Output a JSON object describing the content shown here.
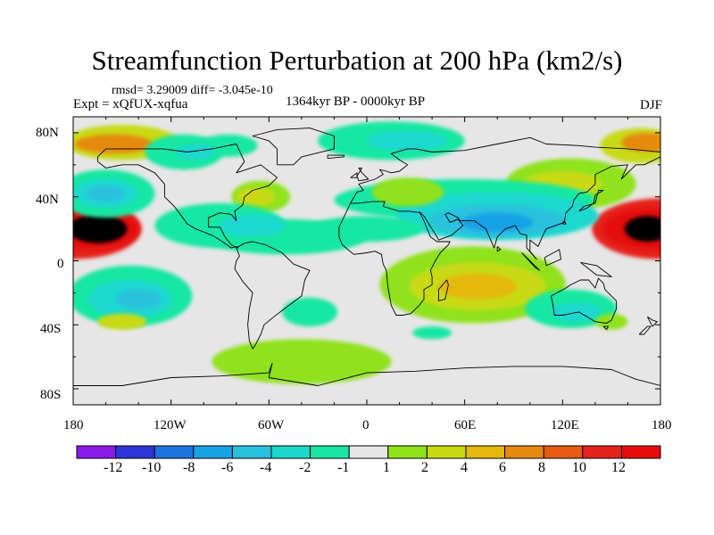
{
  "title": "Streamfunction Perturbation at 200 hPa (km2/s)",
  "stats": "rmsd= 3.29009 diff= -3.045e-10",
  "experiment": "Expt = xQfUX-xqfua",
  "period": "1364kyr BP - 0000kyr BP",
  "season": "DJF",
  "lat_labels": [
    "80N",
    "40N",
    "0",
    "40S",
    "80S"
  ],
  "lon_labels": [
    "180",
    "120W",
    "60W",
    "0",
    "60E",
    "120E",
    "180"
  ],
  "colorbar": {
    "labels": [
      "-12",
      "-10",
      "-8",
      "-6",
      "-4",
      "-2",
      "-1",
      "1",
      "2",
      "4",
      "6",
      "8",
      "10",
      "12"
    ],
    "colors": [
      "#8b1aeb",
      "#2f35d6",
      "#1c74e3",
      "#18a2e6",
      "#29c1de",
      "#1bd8cf",
      "#18e7a3",
      "#e6e6e6",
      "#8fe21a",
      "#c8da12",
      "#e5b80f",
      "#e68a0f",
      "#e65a12",
      "#e6221c",
      "#e50d0d"
    ]
  },
  "field_blobs": [
    {
      "lon": -180,
      "lat": 20,
      "rx": 42,
      "ry": 19,
      "level": 6
    },
    {
      "lon": -170,
      "lat": 20,
      "rx": 30,
      "ry": 13,
      "level": 7
    },
    {
      "lon": -165,
      "lat": 20,
      "rx": 18,
      "ry": 9,
      "level": 8
    },
    {
      "lon": 180,
      "lat": 20,
      "rx": 42,
      "ry": 19,
      "level": 6
    },
    {
      "lon": 175,
      "lat": 20,
      "rx": 30,
      "ry": 13,
      "level": 7
    },
    {
      "lon": 172,
      "lat": 20,
      "rx": 14,
      "ry": 8,
      "level": 8
    },
    {
      "lon": -150,
      "lat": 74,
      "rx": 35,
      "ry": 11,
      "level": 2
    },
    {
      "lon": -155,
      "lat": 73,
      "rx": 24,
      "ry": 6,
      "level": 4
    },
    {
      "lon": 168,
      "lat": 72,
      "rx": 25,
      "ry": 11,
      "level": 2
    },
    {
      "lon": 172,
      "lat": 74,
      "rx": 16,
      "ry": 6,
      "level": 4
    },
    {
      "lon": 125,
      "lat": 48,
      "rx": 40,
      "ry": 16,
      "level": 1
    },
    {
      "lon": 120,
      "lat": 48,
      "rx": 24,
      "ry": 8,
      "level": 2
    },
    {
      "lon": -112,
      "lat": 68,
      "rx": 24,
      "ry": 11,
      "level": -1
    },
    {
      "lon": -85,
      "lat": 72,
      "rx": 18,
      "ry": 7,
      "level": -1
    },
    {
      "lon": -105,
      "lat": 68,
      "rx": 12,
      "ry": 5,
      "level": -2
    },
    {
      "lon": -65,
      "lat": 40,
      "rx": 18,
      "ry": 10,
      "level": 1
    },
    {
      "lon": -68,
      "lat": 40,
      "rx": 12,
      "ry": 6,
      "level": 2
    },
    {
      "lon": -90,
      "lat": 22,
      "rx": 40,
      "ry": 14,
      "level": -1
    },
    {
      "lon": -50,
      "lat": 15,
      "rx": 50,
      "ry": 11,
      "level": -1
    },
    {
      "lon": -70,
      "lat": 22,
      "rx": 20,
      "ry": 7,
      "level": -2
    },
    {
      "lon": -160,
      "lat": 42,
      "rx": 30,
      "ry": 15,
      "level": -1
    },
    {
      "lon": -160,
      "lat": 42,
      "rx": 20,
      "ry": 9,
      "level": -2
    },
    {
      "lon": -160,
      "lat": 42,
      "rx": 12,
      "ry": 5,
      "level": -3
    },
    {
      "lon": -145,
      "lat": -22,
      "rx": 38,
      "ry": 19,
      "level": -1
    },
    {
      "lon": -145,
      "lat": -24,
      "rx": 26,
      "ry": 12,
      "level": -2
    },
    {
      "lon": -140,
      "lat": -24,
      "rx": 14,
      "ry": 6,
      "level": -3
    },
    {
      "lon": -150,
      "lat": -38,
      "rx": 15,
      "ry": 5,
      "level": 2
    },
    {
      "lon": -35,
      "lat": -32,
      "rx": 17,
      "ry": 9,
      "level": -1
    },
    {
      "lon": 60,
      "lat": 38,
      "rx": 80,
      "ry": 13,
      "level": -1
    },
    {
      "lon": 80,
      "lat": 28,
      "rx": 62,
      "ry": 15,
      "level": -2
    },
    {
      "lon": 80,
      "lat": 25,
      "rx": 42,
      "ry": 10,
      "level": -3
    },
    {
      "lon": 80,
      "lat": 24,
      "rx": 22,
      "ry": 6,
      "level": -4
    },
    {
      "lon": 0,
      "lat": 20,
      "rx": 35,
      "ry": 8,
      "level": -1
    },
    {
      "lon": 15,
      "lat": 75,
      "rx": 45,
      "ry": 12,
      "level": -1
    },
    {
      "lon": 25,
      "lat": 75,
      "rx": 25,
      "ry": 6,
      "level": -2
    },
    {
      "lon": 25,
      "lat": 43,
      "rx": 22,
      "ry": 9,
      "level": 1
    },
    {
      "lon": 65,
      "lat": -15,
      "rx": 57,
      "ry": 24,
      "level": 1
    },
    {
      "lon": 68,
      "lat": -16,
      "rx": 42,
      "ry": 15,
      "level": 2
    },
    {
      "lon": 68,
      "lat": -16,
      "rx": 24,
      "ry": 8,
      "level": 3
    },
    {
      "lon": 125,
      "lat": -30,
      "rx": 28,
      "ry": 12,
      "level": -1
    },
    {
      "lon": 128,
      "lat": -32,
      "rx": 15,
      "ry": 6,
      "level": -2
    },
    {
      "lon": -40,
      "lat": -63,
      "rx": 55,
      "ry": 14,
      "level": 1
    },
    {
      "lon": 150,
      "lat": -38,
      "rx": 10,
      "ry": 5,
      "level": 1
    },
    {
      "lon": 40,
      "lat": -45,
      "rx": 12,
      "ry": 4,
      "level": -1
    }
  ],
  "coastlines": [
    "-165,65 -160,70 -140,70 -125,70 -110,68 -95,70 -80,73 -75,62 -80,55 -65,60 -55,52 -60,47 -70,44 -75,40 -76,35 -81,31 -80,25 -83,29 -90,30 -97,27 -97,21 -90,21 -87,15 -83,10 -79,8 -80,9 -83,8 -90,13 -95,16 -105,20 -110,23 -115,30 -118,34 -124,40 -124,48 -130,55 -140,60 -150,60 -160,58 -165,62 -165,65",
    "-80,8 -75,11 -70,12 -62,10 -52,5 -45,-2 -35,-6 -38,-12 -40,-22 -48,-28 -57,-35 -63,-40 -65,-46 -68,-52 -70,-55 -72,-50 -73,-40 -72,-30 -70,-20 -76,-13 -81,-5 -80,0 -78,3 -80,8",
    "-55,60 -45,60 -40,65 -20,70 -20,78 -35,83 -55,82 -70,78 -60,75 -55,70 -55,60",
    "-10,36 -6,43 -2,44 -5,48 5,51 10,54 8,57 12,56 15,55 20,56 25,60 20,63 15,67 25,70 30,70 40,68 60,69 80,73 100,77 110,73 130,72 140,71 160,70 170,69 180,68",
    "180,65 170,60 165,60 160,55 156,51 160,60 150,59 140,54 140,48 135,43 130,42 127,38 126,34 122,30 121,24 110,20 108,16 105,9 100,13 100,6 104,1 98,8 98,16 94,17 91,22 88,21 85,20 80,15 78,8 73,20 70,22 66,25 57,25 56,27 50,30 48,29 51,24 56,26 59,22 52,16 44,13 43,15 35,28 33,30 26,31 20,31 10,34 11,37 3,37 -5,36 -10,36",
    "-10,36 -17,21 -17,15 -15,10 -8,4 0,5 5,6 9,4 10,-2 12,-6 13,-17 15,-28 18,-34 22,-34 27,-33 32,-28 35,-24 35,-18 40,-15 40,-10 39,-6 42,0 45,5 50,10 51,12 43,12 39,15 35,25 32,31",
    "113,-22 114,-27 115,-34 120,-34 130,-32 135,-35 140,-38 147,-39 150,-37 153,-30 153,-25 146,-18 145,-14 142,-11 140,-17 136,-12 131,-12 125,-15 122,-17 113,-22",
    "-180,-78 -150,-78 -120,-73 -90,-72 -60,-70 -58,-64 -60,-73 -30,-78 0,-70 30,-69 60,-67 90,-66 120,-66 150,-68 165,-74 180,-78",
    "-5,50 1,51 -3,55 -5,58 -3,58 -6,53 -5,50",
    "-10,52 -6,55 -6,52 -10,52",
    "-24,64 -14,65 -14,66 -24,66 -24,64",
    "130,31 133,34 140,36 141,40 142,44 145,44 140,41 139,36 135,33 130,31",
    "44,-25 48,-24 50,-15 49,-12 44,-18 44,-25",
    "95,5 106,-6 103,-4 95,5",
    "109,2 118,7 119,1 110,-3 109,2",
    "131,-1 141,-3 150,-10 141,-9 131,-1",
    "80,9 82,7 80,6 80,9",
    "120,23 121,25 122,23 120,23",
    "172,-35 175,-37 178,-38 175,-41 172,-35",
    "167,-46 172,-41 174,-41 170,-46 167,-46",
    "145,-41 148,-41 147,-43 145,-41"
  ]
}
